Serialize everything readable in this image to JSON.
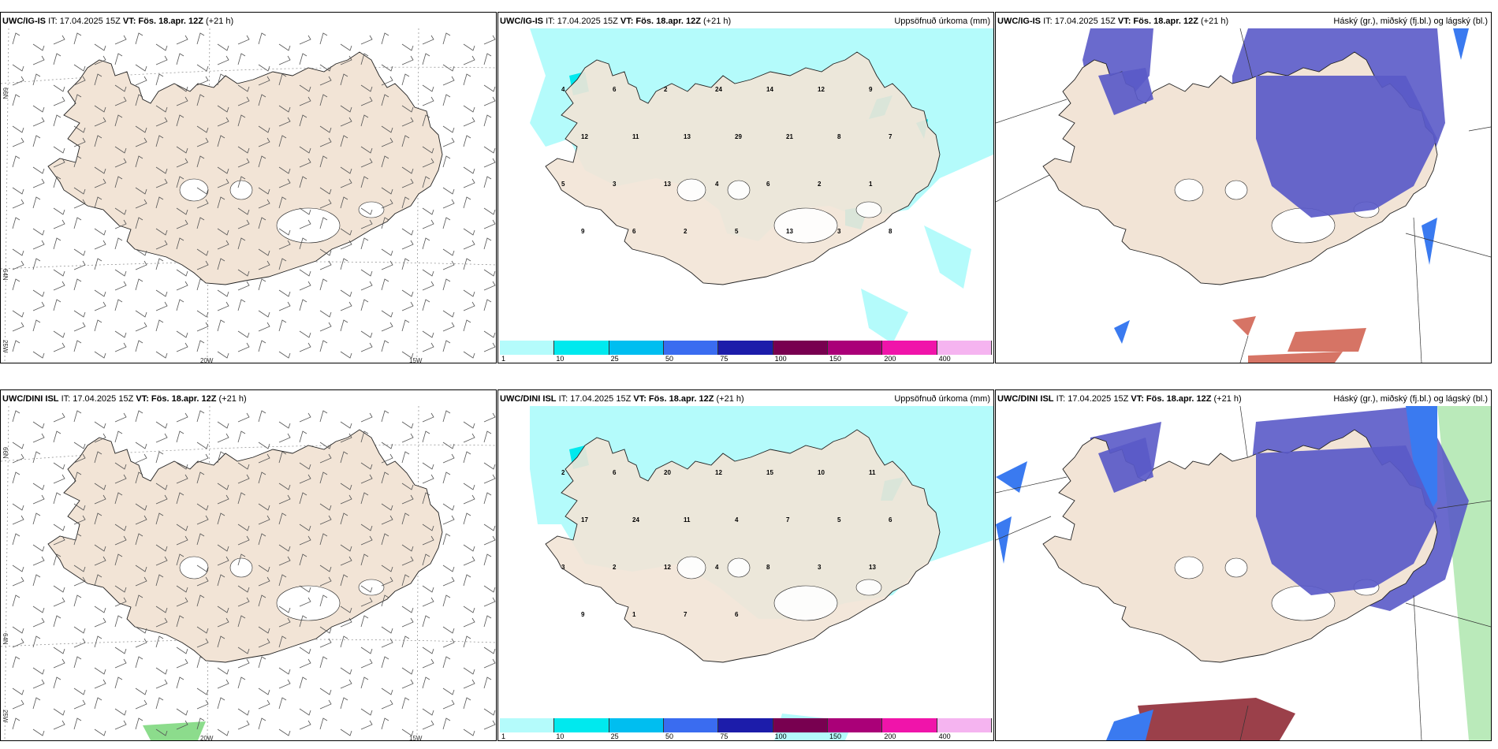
{
  "panels": [
    {
      "model": "UWC/IG-IS",
      "it": "IT: 17.04.2025 15Z",
      "vt": "VT: Fös. 18.apr. 12Z",
      "lead": "(+21 h)",
      "right": ""
    },
    {
      "model": "UWC/IG-IS",
      "it": "IT: 17.04.2025 15Z",
      "vt": "VT: Fös. 18.apr. 12Z",
      "lead": "(+21 h)",
      "right": "Uppsöfnuð úrkoma (mm)"
    },
    {
      "model": "UWC/IG-IS",
      "it": "IT: 17.04.2025 15Z",
      "vt": "VT: Fös. 18.apr. 12Z",
      "lead": "(+21 h)",
      "right": "Háský (gr.), miðský (fj.bl.) og lágský (bl.)"
    },
    {
      "model": "UWC/DINI ISL",
      "it": "IT: 17.04.2025 15Z",
      "vt": "VT: Fös. 18.apr. 12Z",
      "lead": "(+21 h)",
      "right": ""
    },
    {
      "model": "UWC/DINI ISL",
      "it": "IT: 17.04.2025 15Z",
      "vt": "VT: Fös. 18.apr. 12Z",
      "lead": "(+21 h)",
      "right": "Uppsöfnuð úrkoma (mm)"
    },
    {
      "model": "UWC/DINI ISL",
      "it": "IT: 17.04.2025 15Z",
      "vt": "VT: Fös. 18.apr. 12Z",
      "lead": "(+21 h)",
      "right": "Háský (gr.), miðský (fj.bl.) og lágský (bl.)"
    }
  ],
  "coords": {
    "lat66": "66N",
    "lat64": "64N",
    "lon25": "25W",
    "lon20": "20W",
    "lon15": "15W"
  },
  "colorbar": {
    "labels": [
      "1",
      "10",
      "25",
      "50",
      "75",
      "100",
      "150",
      "200",
      "400"
    ],
    "colors": [
      "#b4fbfb",
      "#00e9ee",
      "#00bef0",
      "#3a6cf0",
      "#1c1caa",
      "#780050",
      "#aa0078",
      "#f014aa",
      "#f5b4f0"
    ]
  },
  "colors": {
    "land": "#f2e4d6",
    "precip_light": "#b4fbfb",
    "precip_mid": "#00e9ee",
    "cloud_high": "#5a5ac8",
    "cloud_mid": "#3a7af0",
    "cloud_low_red": "#c84632",
    "cloud_low_green": "#8cdc8c"
  },
  "precip_values_top": [
    "4",
    "6",
    "2",
    "24",
    "14",
    "12",
    "9",
    "12",
    "11",
    "13",
    "29",
    "21",
    "8",
    "7",
    "5",
    "3",
    "13",
    "4",
    "6",
    "2",
    "1",
    "9",
    "6",
    "2",
    "5",
    "13",
    "3",
    "8"
  ],
  "precip_values_bottom": [
    "2",
    "6",
    "20",
    "12",
    "15",
    "10",
    "11",
    "17",
    "24",
    "11",
    "4",
    "7",
    "5",
    "6",
    "3",
    "2",
    "12",
    "4",
    "8",
    "3",
    "13",
    "9",
    "1",
    "7",
    "6"
  ]
}
